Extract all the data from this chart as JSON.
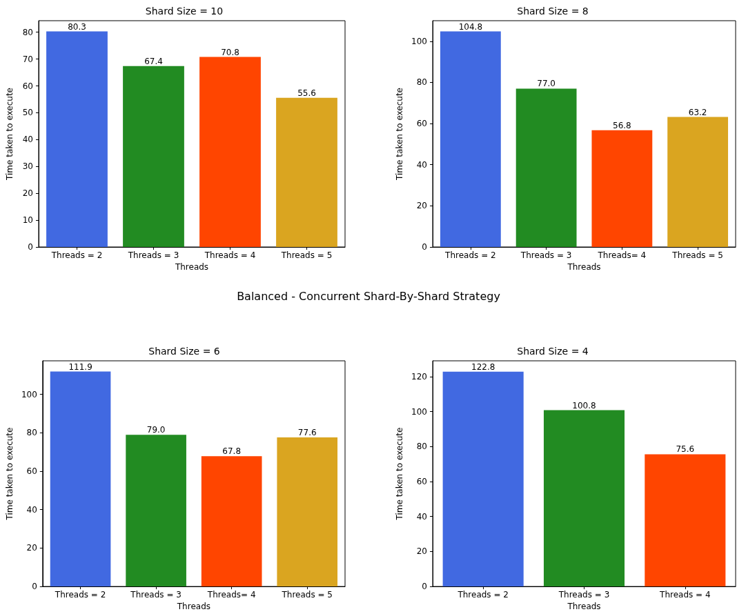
{
  "chart_data": [
    {
      "type": "bar",
      "title": "Shard Size = 10",
      "xlabel": "Threads",
      "ylabel": "Time taken to execute",
      "categories": [
        "Threads = 2",
        "Threads = 3",
        "Threads = 4",
        "Threads = 5"
      ],
      "values": [
        80.3,
        67.4,
        70.8,
        55.6
      ],
      "colors": [
        "#4169e1",
        "#228b22",
        "#ff4500",
        "#daa520"
      ],
      "ylim": [
        0,
        84.3
      ],
      "yticks": [
        0,
        10,
        20,
        30,
        40,
        50,
        60,
        70,
        80
      ],
      "value_labels": [
        "80.3",
        "67.4",
        "70.8",
        "55.6"
      ]
    },
    {
      "type": "bar",
      "title": "Shard Size = 8",
      "xlabel": "Threads",
      "ylabel": "Time taken to execute",
      "categories": [
        "Threads = 2",
        "Threads = 3",
        "Threads= 4",
        "Threads = 5"
      ],
      "values": [
        104.8,
        77.0,
        56.8,
        63.2
      ],
      "colors": [
        "#4169e1",
        "#228b22",
        "#ff4500",
        "#daa520"
      ],
      "ylim": [
        0,
        110
      ],
      "yticks": [
        0,
        20,
        40,
        60,
        80,
        100
      ],
      "value_labels": [
        "104.8",
        "77.0",
        "56.8",
        "63.2"
      ]
    },
    {
      "type": "other",
      "title": "Balanced - Concurrent Shard-By-Shard Strategy"
    },
    {
      "type": "bar",
      "title": "Shard Size = 6",
      "xlabel": "Threads",
      "ylabel": "Time taken to execute",
      "categories": [
        "Threads = 2",
        "Threads = 3",
        "Threads= 4",
        "Threads = 5"
      ],
      "values": [
        111.9,
        79.0,
        67.8,
        77.6
      ],
      "colors": [
        "#4169e1",
        "#228b22",
        "#ff4500",
        "#daa520"
      ],
      "ylim": [
        0,
        117.5
      ],
      "yticks": [
        0,
        20,
        40,
        60,
        80,
        100
      ],
      "value_labels": [
        "111.9",
        "79.0",
        "67.8",
        "77.6"
      ]
    },
    {
      "type": "bar",
      "title": "Shard Size = 4",
      "xlabel": "Threads",
      "ylabel": "Time taken to execute",
      "categories": [
        "Threads = 2",
        "Threads = 3",
        "Threads = 4"
      ],
      "values": [
        122.8,
        100.8,
        75.6
      ],
      "colors": [
        "#4169e1",
        "#228b22",
        "#ff4500"
      ],
      "ylim": [
        0,
        129
      ],
      "yticks": [
        0,
        20,
        40,
        60,
        80,
        100,
        120
      ],
      "value_labels": [
        "122.8",
        "100.8",
        "75.6"
      ]
    }
  ]
}
